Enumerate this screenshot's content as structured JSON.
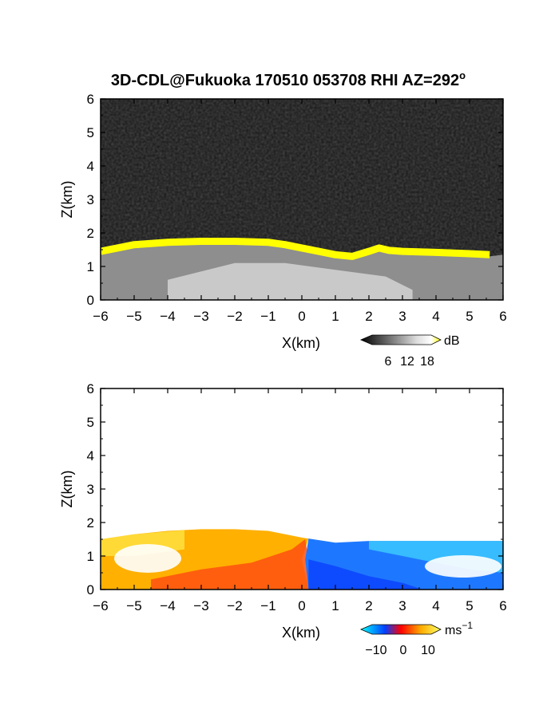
{
  "title_main": "3D-CDL@Fukuoka 170510 053708 RHI AZ=292",
  "title_superscript": "o",
  "chart_data": [
    {
      "type": "heatmap",
      "quantity": "backscatter intensity",
      "xlabel": "X(km)",
      "ylabel": "Z(km)",
      "xlim": [
        -6,
        6
      ],
      "ylim": [
        0,
        6
      ],
      "xticks": [
        "-6",
        "-5",
        "-4",
        "-3",
        "-2",
        "-1",
        "0",
        "1",
        "2",
        "3",
        "4",
        "5",
        "6"
      ],
      "yticks": [
        "0",
        "1",
        "2",
        "3",
        "4",
        "5",
        "6"
      ],
      "colorbar": {
        "unit": "dB",
        "ticks": [
          "6",
          "12",
          "18"
        ],
        "range": [
          0,
          20
        ],
        "colors": [
          "#000000",
          "#ffffff",
          "#ffff00"
        ]
      },
      "boundary_layer_top_km": [
        [
          -6,
          1.45
        ],
        [
          -5.5,
          1.55
        ],
        [
          -5,
          1.65
        ],
        [
          -4,
          1.72
        ],
        [
          -3,
          1.75
        ],
        [
          -2,
          1.75
        ],
        [
          -1,
          1.72
        ],
        [
          -0.5,
          1.65
        ],
        [
          0,
          1.55
        ],
        [
          0.5,
          1.45
        ],
        [
          1,
          1.35
        ],
        [
          1.5,
          1.3
        ],
        [
          2,
          1.45
        ],
        [
          2.3,
          1.55
        ],
        [
          2.6,
          1.48
        ],
        [
          3,
          1.45
        ],
        [
          4,
          1.42
        ],
        [
          5,
          1.38
        ],
        [
          5.6,
          1.35
        ]
      ]
    },
    {
      "type": "heatmap",
      "quantity": "radial velocity",
      "xlabel": "X(km)",
      "ylabel": "Z(km)",
      "xlim": [
        -6,
        6
      ],
      "ylim": [
        0,
        6
      ],
      "xticks": [
        "-6",
        "-5",
        "-4",
        "-3",
        "-2",
        "-1",
        "0",
        "1",
        "2",
        "3",
        "4",
        "5",
        "6"
      ],
      "yticks": [
        "0",
        "1",
        "2",
        "3",
        "4",
        "5",
        "6"
      ],
      "colorbar": {
        "unit": "ms",
        "unit_superscript": "−1",
        "ticks": [
          "−10",
          "0",
          "10"
        ],
        "range": [
          -15,
          15
        ],
        "colors": [
          "#00ffff",
          "#0040ff",
          "#ff0000",
          "#ffcc00",
          "#ffff66"
        ]
      },
      "data_top_km": [
        [
          -6,
          1.5
        ],
        [
          -5,
          1.65
        ],
        [
          -4,
          1.75
        ],
        [
          -3,
          1.8
        ],
        [
          -2,
          1.8
        ],
        [
          -1,
          1.75
        ],
        [
          0,
          1.55
        ],
        [
          1,
          1.4
        ],
        [
          2,
          1.45
        ],
        [
          3,
          1.45
        ],
        [
          4,
          1.45
        ],
        [
          5,
          1.45
        ],
        [
          6,
          1.45
        ]
      ],
      "sign_change_x_km": 0.2
    }
  ]
}
